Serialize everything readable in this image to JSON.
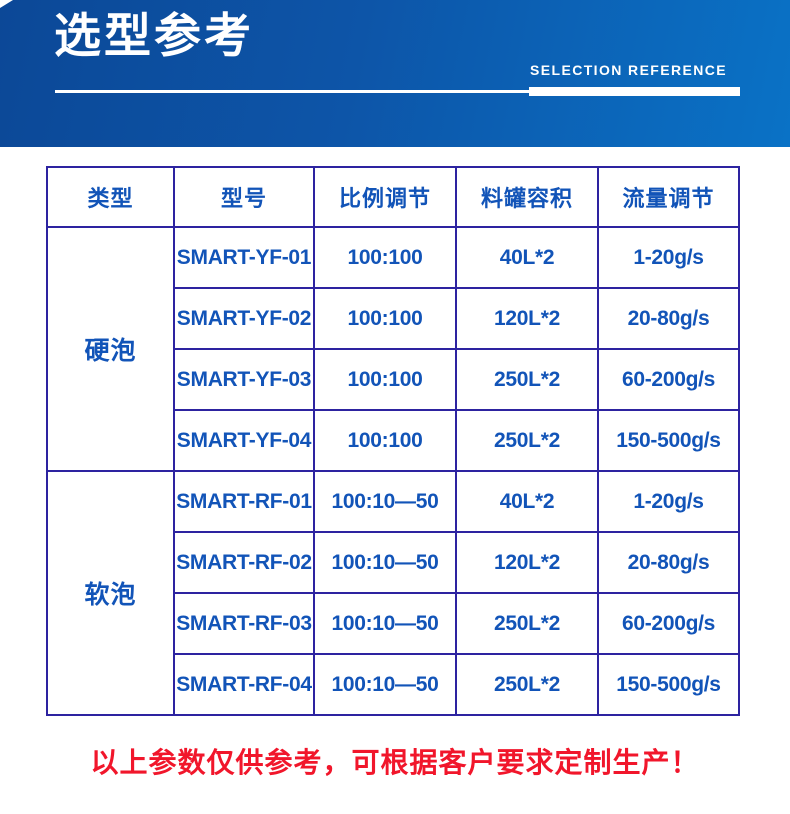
{
  "banner": {
    "title": "选型参考",
    "subtitle": "SELECTION REFERENCE",
    "bg_left": "#0c4897",
    "bg_right": "#0a72c6"
  },
  "table": {
    "border_color": "#2d23a0",
    "text_color": "#1254b8",
    "headers": [
      "类型",
      "型号",
      "比例调节",
      "料罐容积",
      "流量调节"
    ],
    "groups": [
      {
        "type": "硬泡",
        "rows": [
          {
            "model": "SMART-YF-01",
            "ratio": "100:100",
            "tank": "40L*2",
            "flow": "1-20g/s"
          },
          {
            "model": "SMART-YF-02",
            "ratio": "100:100",
            "tank": "120L*2",
            "flow": "20-80g/s"
          },
          {
            "model": "SMART-YF-03",
            "ratio": "100:100",
            "tank": "250L*2",
            "flow": "60-200g/s"
          },
          {
            "model": "SMART-YF-04",
            "ratio": "100:100",
            "tank": "250L*2",
            "flow": "150-500g/s"
          }
        ]
      },
      {
        "type": "软泡",
        "rows": [
          {
            "model": "SMART-RF-01",
            "ratio": "100:10—50",
            "tank": "40L*2",
            "flow": "1-20g/s"
          },
          {
            "model": "SMART-RF-02",
            "ratio": "100:10—50",
            "tank": "120L*2",
            "flow": "20-80g/s"
          },
          {
            "model": "SMART-RF-03",
            "ratio": "100:10—50",
            "tank": "250L*2",
            "flow": "60-200g/s"
          },
          {
            "model": "SMART-RF-04",
            "ratio": "100:10—50",
            "tank": "250L*2",
            "flow": "150-500g/s"
          }
        ]
      }
    ]
  },
  "footer": {
    "note": "以上参数仅供参考，可根据客户要求定制生产！",
    "color": "#f1162b"
  }
}
